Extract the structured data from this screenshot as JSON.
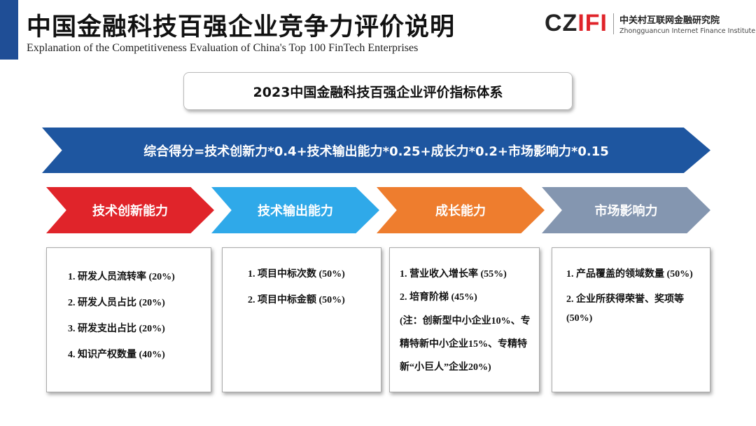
{
  "header": {
    "title": "中国金融科技百强企业竞争力评价说明",
    "subtitle": "Explanation of the Competitiveness Evaluation of China's Top 100 FinTech Enterprises"
  },
  "logo": {
    "mark_left": "CZ",
    "mark_right": "IFI",
    "name_cn": "中关村互联网金融研究院",
    "name_en": "Zhongguancun Internet Finance Institute"
  },
  "system_title": "2023中国金融科技百强企业评价指标体系",
  "formula": "综合得分=技术创新力*0.4+技术输出能力*0.25+成长力*0.2+市场影响力*0.15",
  "categories": [
    {
      "label": "技术创新能力",
      "color": "#e0242a",
      "items": [
        "1. 研发人员流转率 (20%)",
        "2. 研发人员占比 (20%)",
        "3. 研发支出占比 (20%)",
        "4. 知识产权数量 (40%)"
      ]
    },
    {
      "label": "技术输出能力",
      "color": "#2fa9e9",
      "items": [
        "1. 项目中标次数 (50%)",
        "2. 项目中标金额 (50%)"
      ]
    },
    {
      "label": "成长能力",
      "color": "#ee7d2e",
      "items": [
        "1. 营业收入增长率 (55%)",
        "2. 培育阶梯 (45%)",
        "(注：创新型中小企业10%、专精特新中小企业15%、专精特新“小巨人”企业20%)"
      ]
    },
    {
      "label": "市场影响力",
      "color": "#8496b0",
      "items": [
        "1. 产品覆盖的领域数量 (50%)",
        "2. 企业所获得荣誉、奖项等 (50%)"
      ]
    }
  ]
}
